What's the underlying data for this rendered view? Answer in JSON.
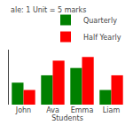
{
  "chart_data": {
    "type": "bar",
    "categories": [
      "John",
      "Ava",
      "Emma",
      "Liam"
    ],
    "series": [
      {
        "name": "Quarterly",
        "color": "#008000",
        "values": [
          3,
          4,
          5,
          2
        ]
      },
      {
        "name": "Half Yearly",
        "color": "#ff0000",
        "values": [
          2,
          6,
          6.5,
          4
        ]
      }
    ],
    "xlabel": "Students",
    "annotations": [
      "ale: 1 Unit = 5 marks"
    ],
    "ylim": [
      0,
      7.5
    ],
    "tick_labels": "x",
    "legend": "upper right"
  }
}
